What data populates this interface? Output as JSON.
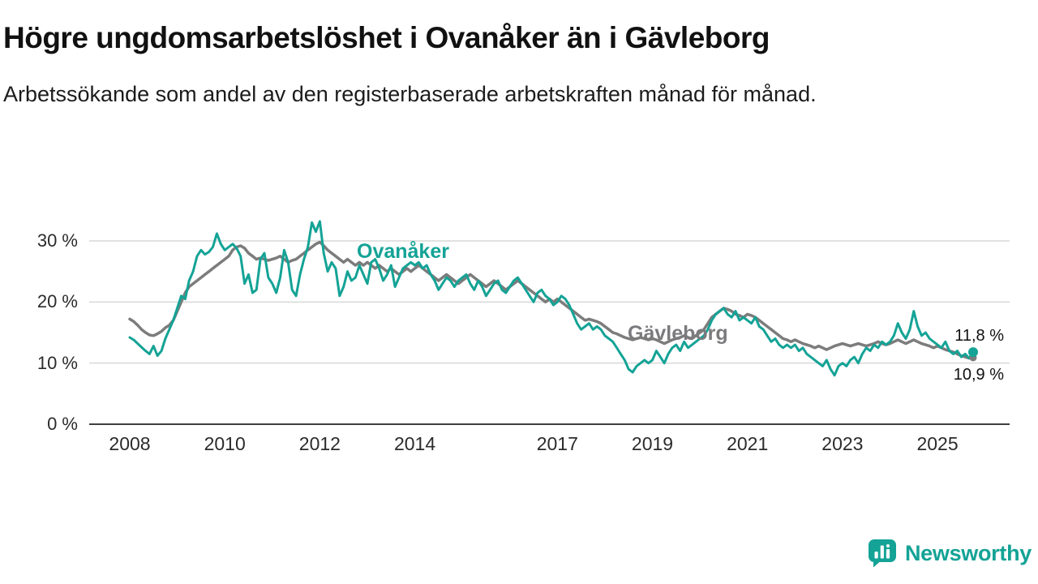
{
  "header": {
    "title": "Högre ungdomsarbetslöshet i Ovanåker än i Gävleborg",
    "subtitle": "Arbetssökande som andel av den registerbaserade arbetskraften månad för månad."
  },
  "branding": {
    "name": "Newsworthy",
    "accent_color": "#14a396"
  },
  "chart_data": {
    "type": "line",
    "title": "Högre ungdomsarbetslöshet i Ovanåker än i Gävleborg",
    "subtitle": "Arbetssökande som andel av den registerbaserade arbetskraften månad för månad.",
    "unit": "%",
    "x_start": "2008-01",
    "x_end": "2025-10",
    "x_ticks": [
      2008,
      2010,
      2012,
      2014,
      2017,
      2019,
      2021,
      2023,
      2025
    ],
    "y_ticks": [
      0,
      10,
      20,
      30
    ],
    "y_tick_suffix": " %",
    "ylim": [
      0,
      33.5
    ],
    "grid": true,
    "legend_position": "inline-labels",
    "series": [
      {
        "name": "Ovanåker",
        "color": "#14a396",
        "end_label": "11,8 %",
        "end_value": 11.8,
        "values": [
          14.2,
          13.8,
          13.2,
          12.6,
          12.0,
          11.5,
          12.8,
          11.2,
          12.0,
          14.0,
          15.5,
          17.0,
          19.0,
          21.0,
          20.5,
          23.5,
          25.0,
          27.5,
          28.5,
          27.8,
          28.2,
          29.0,
          31.2,
          29.5,
          28.5,
          29.0,
          29.5,
          28.8,
          27.5,
          23.0,
          24.5,
          21.5,
          22.0,
          27.0,
          28.0,
          24.0,
          23.0,
          21.5,
          24.0,
          28.5,
          26.5,
          22.0,
          21.0,
          24.5,
          27.0,
          29.0,
          33.0,
          31.5,
          33.2,
          28.0,
          25.0,
          26.5,
          25.5,
          21.0,
          22.5,
          25.0,
          23.5,
          24.0,
          26.0,
          24.5,
          23.0,
          26.5,
          27.0,
          25.5,
          23.5,
          24.5,
          26.0,
          22.5,
          24.0,
          25.5,
          26.0,
          26.5,
          26.0,
          26.5,
          25.5,
          26.0,
          24.5,
          23.5,
          22.0,
          23.0,
          24.0,
          23.5,
          22.5,
          23.5,
          24.0,
          24.5,
          23.0,
          22.0,
          23.5,
          22.5,
          21.0,
          22.0,
          23.0,
          23.5,
          22.0,
          21.5,
          22.5,
          23.5,
          24.0,
          23.0,
          22.0,
          21.0,
          20.0,
          21.5,
          22.0,
          21.0,
          20.5,
          19.5,
          20.0,
          21.0,
          20.5,
          19.5,
          18.0,
          16.5,
          15.5,
          16.0,
          16.5,
          15.5,
          16.0,
          15.5,
          14.5,
          14.0,
          13.5,
          12.5,
          11.5,
          10.5,
          9.0,
          8.5,
          9.5,
          10.0,
          10.5,
          10.0,
          10.5,
          12.0,
          11.0,
          10.0,
          11.5,
          12.5,
          13.0,
          12.0,
          13.5,
          12.5,
          13.0,
          13.5,
          14.0,
          14.5,
          15.5,
          17.0,
          18.0,
          18.5,
          19.0,
          18.0,
          17.5,
          18.5,
          17.0,
          17.5,
          17.0,
          16.5,
          17.5,
          16.0,
          15.5,
          14.5,
          13.5,
          14.0,
          13.0,
          12.5,
          13.0,
          12.5,
          13.0,
          12.0,
          12.5,
          11.5,
          11.0,
          10.5,
          10.0,
          9.5,
          10.5,
          9.0,
          8.0,
          9.5,
          10.0,
          9.5,
          10.5,
          11.0,
          10.0,
          11.5,
          12.5,
          12.0,
          13.0,
          12.5,
          13.5,
          13.0,
          13.5,
          14.5,
          16.5,
          15.0,
          14.0,
          15.5,
          18.5,
          16.0,
          14.5,
          15.0,
          14.0,
          13.5,
          13.0,
          12.5,
          13.5,
          12.0,
          11.5,
          12.0,
          11.0,
          11.5,
          10.8,
          11.8
        ]
      },
      {
        "name": "Gävleborg",
        "color": "#7c7c7c",
        "end_label": "10,9 %",
        "end_value": 10.9,
        "values": [
          17.2,
          16.8,
          16.2,
          15.5,
          15.0,
          14.6,
          14.5,
          14.8,
          15.2,
          15.8,
          16.2,
          17.0,
          18.5,
          20.0,
          21.5,
          22.5,
          23.0,
          23.5,
          24.0,
          24.5,
          25.0,
          25.5,
          26.0,
          26.5,
          27.0,
          27.5,
          28.5,
          29.0,
          29.2,
          28.8,
          28.0,
          27.5,
          27.0,
          27.2,
          27.0,
          26.8,
          27.0,
          27.2,
          27.5,
          27.0,
          26.5,
          26.8,
          27.0,
          27.5,
          28.0,
          28.5,
          29.0,
          29.5,
          29.8,
          29.2,
          28.5,
          28.0,
          27.5,
          27.0,
          26.5,
          27.0,
          26.5,
          26.0,
          26.5,
          26.0,
          26.5,
          26.0,
          25.5,
          26.0,
          25.5,
          25.0,
          25.5,
          25.0,
          24.5,
          25.0,
          25.5,
          25.0,
          25.5,
          26.0,
          25.5,
          25.0,
          24.5,
          24.0,
          23.5,
          24.0,
          24.5,
          24.0,
          23.5,
          23.0,
          23.5,
          24.0,
          24.5,
          24.0,
          23.5,
          23.0,
          22.5,
          23.0,
          23.5,
          23.0,
          22.5,
          22.0,
          22.5,
          23.0,
          23.5,
          23.0,
          22.5,
          22.0,
          21.5,
          21.0,
          20.5,
          20.0,
          20.5,
          20.0,
          20.5,
          20.0,
          19.5,
          19.0,
          18.5,
          18.0,
          17.5,
          17.0,
          17.2,
          17.0,
          16.8,
          16.5,
          16.0,
          15.5,
          15.0,
          14.8,
          14.5,
          14.2,
          14.0,
          13.8,
          14.0,
          14.2,
          14.0,
          13.8,
          14.0,
          13.8,
          13.5,
          13.2,
          13.5,
          13.8,
          14.0,
          14.2,
          14.5,
          14.2,
          14.0,
          14.5,
          15.0,
          15.5,
          16.5,
          17.5,
          18.0,
          18.5,
          19.0,
          18.8,
          18.5,
          18.0,
          17.8,
          17.5,
          18.0,
          17.8,
          17.5,
          17.0,
          16.5,
          16.0,
          15.5,
          15.0,
          14.5,
          14.0,
          13.8,
          13.5,
          13.8,
          13.5,
          13.2,
          13.0,
          12.8,
          12.5,
          12.8,
          12.5,
          12.2,
          12.5,
          12.8,
          13.0,
          13.2,
          13.0,
          12.8,
          13.0,
          13.2,
          13.0,
          12.8,
          13.0,
          13.2,
          13.5,
          13.2,
          13.0,
          13.2,
          13.5,
          13.8,
          13.5,
          13.2,
          13.5,
          13.8,
          13.5,
          13.2,
          13.0,
          12.8,
          12.5,
          12.8,
          12.5,
          12.2,
          12.0,
          11.8,
          11.5,
          11.2,
          11.0,
          10.8,
          10.9
        ]
      }
    ]
  }
}
